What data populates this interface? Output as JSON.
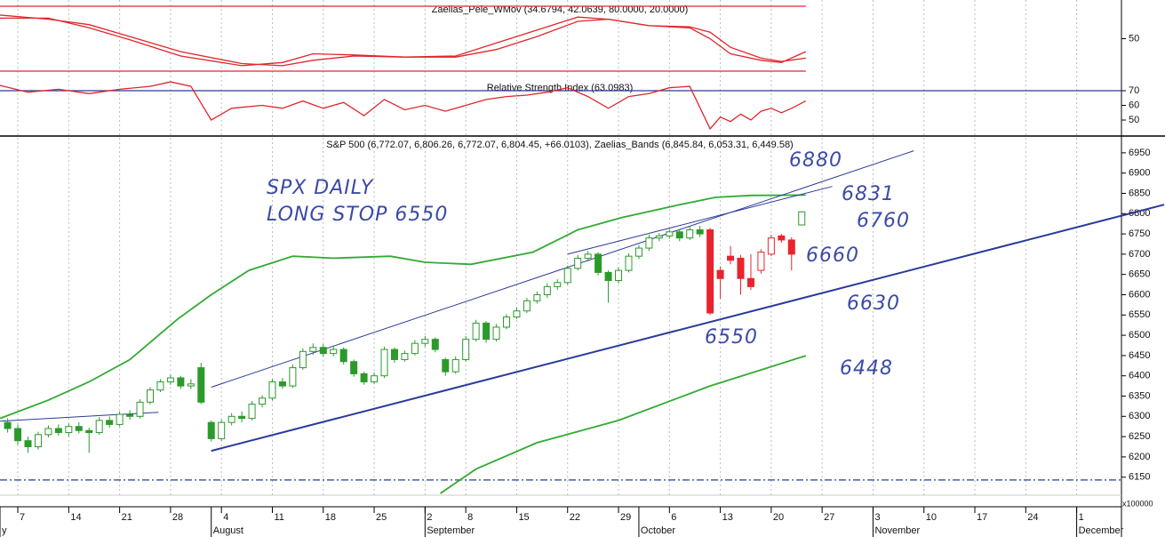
{
  "chart_data": [
    {
      "type": "line",
      "title": "Zaelias_Pele_WMov (34.6794, 42.0639, 80.0000, 20.0000)",
      "ylim": [
        11.8,
        85.75
      ],
      "yticks": [
        50
      ],
      "hlines": [
        80,
        20
      ],
      "hline_color": "#e0262c",
      "series": [
        {
          "color": "#e0262c",
          "x": [
            -2,
            3,
            7,
            11,
            16,
            22,
            26,
            29,
            33,
            38,
            43,
            47,
            51,
            55,
            58,
            62,
            66,
            68,
            70,
            73,
            75,
            77.4
          ],
          "values": [
            69,
            69,
            60,
            49,
            34,
            25,
            28,
            36,
            35,
            33,
            34,
            46,
            58,
            70,
            68,
            62,
            60,
            50,
            36,
            30,
            28,
            38
          ]
        },
        {
          "color": "#e0262c",
          "x": [
            -2,
            3,
            7,
            11,
            16,
            22,
            26,
            29,
            33,
            38,
            43,
            47,
            51,
            55,
            58,
            62,
            66,
            68,
            70,
            73,
            75,
            77.4
          ],
          "values": [
            72,
            68,
            63,
            52,
            38,
            27,
            25,
            30,
            34,
            33,
            33,
            40,
            52,
            66,
            68,
            62,
            61,
            56,
            42,
            32,
            29,
            32
          ]
        }
      ]
    },
    {
      "type": "line",
      "title": "Relative Strength Index (63.0983)",
      "ylim": [
        39.7,
        77.3
      ],
      "yticks": [
        50,
        60,
        70
      ],
      "hlines": [
        70
      ],
      "hline_color": "#2a3a9a",
      "series": [
        {
          "color": "#e0262c",
          "x": [
            -2,
            1,
            4,
            7,
            10,
            13,
            15,
            17,
            19,
            21,
            24,
            26,
            28,
            30,
            32,
            34,
            36,
            38,
            40,
            42,
            44,
            46,
            48,
            50,
            52,
            54,
            56,
            58,
            60,
            62,
            64,
            66,
            68,
            69,
            70,
            71,
            72,
            73,
            74,
            75,
            76,
            77.4
          ],
          "values": [
            74,
            69,
            71,
            68,
            71,
            73,
            76,
            73,
            50,
            58,
            60,
            58,
            63,
            58,
            62,
            53,
            64,
            57,
            60,
            56,
            60,
            64,
            66,
            67,
            69,
            72,
            66,
            58,
            66,
            68,
            72,
            73,
            44,
            52,
            49,
            54,
            50,
            56,
            58,
            55,
            58,
            63
          ]
        }
      ]
    },
    {
      "type": "candlestick",
      "title": "S&P 500 (6,772.07, 6,806.26, 6,772.07, 6,804.45, +66.0103), Zaelias_Bands (6,845.84, 6,053.31, 6,449.58)",
      "ylim": [
        6077,
        6987
      ],
      "yticks": [
        6150,
        6200,
        6250,
        6300,
        6350,
        6400,
        6450,
        6500,
        6550,
        6600,
        6650,
        6700,
        6750,
        6800,
        6850,
        6900,
        6950
      ],
      "xlim": [
        -1.75,
        108.4
      ],
      "xticks": [
        {
          "value": 0,
          "label": "7"
        },
        {
          "value": 5,
          "label": "14"
        },
        {
          "value": 10,
          "label": "21"
        },
        {
          "value": 15,
          "label": "28"
        },
        {
          "value": 20,
          "label": "4"
        },
        {
          "value": 25,
          "label": "11"
        },
        {
          "value": 30,
          "label": "18"
        },
        {
          "value": 35,
          "label": "25"
        },
        {
          "value": 40,
          "label": "2"
        },
        {
          "value": 44,
          "label": "8"
        },
        {
          "value": 49,
          "label": "15"
        },
        {
          "value": 54,
          "label": "22"
        },
        {
          "value": 59,
          "label": "29"
        },
        {
          "value": 64,
          "label": "6"
        },
        {
          "value": 69,
          "label": "13"
        },
        {
          "value": 74,
          "label": "20"
        },
        {
          "value": 79,
          "label": "27"
        },
        {
          "value": 84,
          "label": "3"
        },
        {
          "value": 89,
          "label": "10"
        },
        {
          "value": 94,
          "label": "17"
        },
        {
          "value": 99,
          "label": "24"
        },
        {
          "value": 104,
          "label": "1"
        }
      ],
      "months": [
        {
          "value": -1.75,
          "label": "y"
        },
        {
          "value": 19,
          "label": "August"
        },
        {
          "value": 40,
          "label": "September"
        },
        {
          "value": 61,
          "label": "October"
        },
        {
          "value": 84,
          "label": "November"
        },
        {
          "value": 104,
          "label": "December"
        }
      ],
      "grid": true,
      "candles": [
        {
          "color": "#2b9a2b",
          "x": [
            -1,
            0,
            1,
            2,
            3,
            4,
            5,
            6,
            7,
            8,
            9,
            10,
            11,
            12,
            13,
            14,
            15,
            16,
            17,
            18,
            19,
            20,
            21,
            22,
            23,
            24,
            25,
            26,
            27,
            28,
            29,
            30,
            31,
            32,
            33,
            34,
            35,
            36,
            37,
            38,
            39,
            40,
            41,
            42,
            43,
            44,
            45,
            46,
            47,
            48,
            49,
            50,
            51,
            52,
            53,
            54,
            55,
            56,
            57,
            58,
            59,
            60,
            61,
            62,
            63,
            64,
            65,
            66,
            67
          ],
          "open": [
            6285,
            6270,
            6240,
            6225,
            6255,
            6270,
            6260,
            6275,
            6265,
            6260,
            6290,
            6280,
            6305,
            6300,
            6335,
            6365,
            6385,
            6395,
            6375,
            6420,
            6285,
            6245,
            6285,
            6300,
            6295,
            6330,
            6345,
            6385,
            6375,
            6420,
            6460,
            6470,
            6455,
            6465,
            6435,
            6405,
            6385,
            6400,
            6465,
            6440,
            6455,
            6480,
            6490,
            6440,
            6410,
            6440,
            6490,
            6530,
            6490,
            6520,
            6545,
            6560,
            6585,
            6600,
            6620,
            6630,
            6665,
            6690,
            6700,
            6655,
            6635,
            6660,
            6695,
            6715,
            6740,
            6745,
            6755,
            6740,
            6760
          ],
          "high": [
            6295,
            6280,
            6250,
            6262,
            6278,
            6280,
            6282,
            6285,
            6272,
            6298,
            6300,
            6312,
            6315,
            6342,
            6372,
            6392,
            6402,
            6400,
            6392,
            6432,
            6290,
            6292,
            6308,
            6312,
            6338,
            6352,
            6392,
            6395,
            6428,
            6468,
            6480,
            6478,
            6472,
            6470,
            6440,
            6410,
            6408,
            6472,
            6470,
            6462,
            6488,
            6498,
            6495,
            6445,
            6448,
            6498,
            6538,
            6535,
            6528,
            6552,
            6568,
            6592,
            6608,
            6628,
            6638,
            6672,
            6698,
            6708,
            6705,
            6660,
            6668,
            6702,
            6722,
            6748,
            6752,
            6762,
            6762,
            6768,
            6770
          ],
          "low": [
            6260,
            6230,
            6210,
            6218,
            6248,
            6252,
            6250,
            6258,
            6210,
            6255,
            6272,
            6275,
            6292,
            6295,
            6330,
            6360,
            6378,
            6368,
            6368,
            6330,
            6238,
            6240,
            6278,
            6285,
            6290,
            6322,
            6340,
            6368,
            6370,
            6415,
            6452,
            6448,
            6448,
            6428,
            6398,
            6378,
            6380,
            6395,
            6432,
            6435,
            6450,
            6472,
            6458,
            6400,
            6405,
            6435,
            6485,
            6482,
            6485,
            6515,
            6540,
            6555,
            6578,
            6592,
            6612,
            6625,
            6660,
            6682,
            6648,
            6580,
            6628,
            6655,
            6688,
            6708,
            6732,
            6738,
            6732,
            6735,
            6742
          ],
          "close": [
            6270,
            6240,
            6225,
            6255,
            6270,
            6260,
            6275,
            6265,
            6260,
            6290,
            6280,
            6305,
            6300,
            6335,
            6365,
            6385,
            6395,
            6375,
            6380,
            6335,
            6245,
            6285,
            6300,
            6295,
            6330,
            6345,
            6385,
            6375,
            6420,
            6460,
            6470,
            6455,
            6465,
            6435,
            6405,
            6385,
            6400,
            6465,
            6440,
            6455,
            6480,
            6490,
            6465,
            6410,
            6440,
            6490,
            6530,
            6490,
            6520,
            6545,
            6560,
            6585,
            6600,
            6620,
            6630,
            6665,
            6690,
            6700,
            6655,
            6635,
            6660,
            6695,
            6715,
            6740,
            6745,
            6755,
            6740,
            6760,
            6750
          ]
        },
        {
          "color": "#e8242c",
          "x": [
            68,
            69,
            70,
            71,
            72,
            73,
            74,
            75,
            76
          ],
          "open": [
            6760,
            6660,
            6695,
            6690,
            6640,
            6660,
            6700,
            6745,
            6735
          ],
          "high": [
            6765,
            6670,
            6720,
            6698,
            6700,
            6712,
            6748,
            6750,
            6742
          ],
          "low": [
            6550,
            6590,
            6675,
            6600,
            6612,
            6652,
            6695,
            6728,
            6660
          ],
          "close": [
            6555,
            6640,
            6685,
            6640,
            6620,
            6705,
            6740,
            6735,
            6700
          ]
        },
        {
          "color": "#2b9a2b",
          "x": [
            77
          ],
          "open": [
            6772.07
          ],
          "high": [
            6806.26
          ],
          "low": [
            6772.07
          ],
          "close": [
            6804.45
          ]
        }
      ],
      "bands": [
        {
          "color": "#33aa33",
          "x": [
            -1.75,
            3,
            7,
            11,
            15.7,
            19,
            22.7,
            27,
            31,
            36.6,
            40,
            44.5,
            50.6,
            55,
            59.3,
            64.6,
            68.5,
            72,
            77.4
          ],
          "values": [
            6295,
            6340,
            6385,
            6440,
            6540,
            6600,
            6660,
            6695,
            6690,
            6695,
            6680,
            6675,
            6705,
            6760,
            6790,
            6820,
            6840,
            6845,
            6845.84
          ]
        },
        {
          "color": "#33aa33",
          "x": [
            41.5,
            45,
            51,
            59,
            68,
            77.4
          ],
          "values": [
            6110,
            6170,
            6235,
            6290,
            6375,
            6449.58
          ]
        }
      ],
      "trend_lines": [
        {
          "color": "#2a3a9a",
          "width": 2,
          "x": [
            19,
            112.6
          ],
          "values": [
            6215,
            6822
          ]
        },
        {
          "color": "#2a3a9a",
          "width": 1,
          "x": [
            19,
            88
          ],
          "values": [
            6372,
            6955
          ]
        },
        {
          "color": "#2a3a9a",
          "width": 1,
          "x": [
            54,
            80
          ],
          "values": [
            6700,
            6867
          ]
        },
        {
          "color": "#2a3a9a",
          "width": 1,
          "x": [
            -1.75,
            13.8
          ],
          "values": [
            6288,
            6310
          ]
        }
      ],
      "hlines": [
        6143
      ],
      "hline_color": "#2a3a9a",
      "annotations": [
        "SPX DAILY",
        "LONG STOP 6550",
        "6880",
        "6831",
        "6760",
        "6660",
        "6630",
        "6550",
        "6448"
      ],
      "volume_label": "x100000"
    }
  ]
}
